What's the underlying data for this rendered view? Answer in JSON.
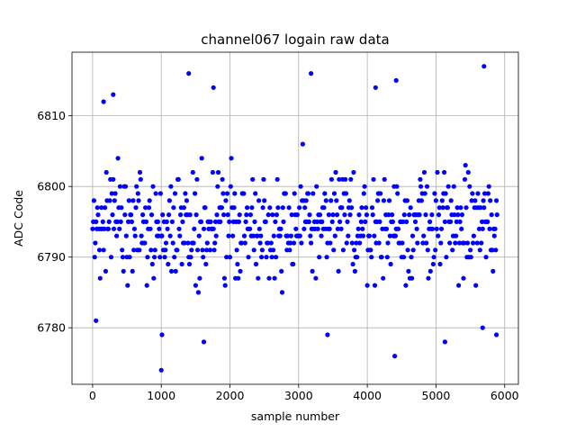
{
  "chart_data": {
    "type": "scatter",
    "title": "channel067 logain raw data",
    "xlabel": "sample number",
    "ylabel": "ADC Code",
    "xlim": [
      -300,
      6200
    ],
    "ylim": [
      6772,
      6819
    ],
    "xticks": [
      0,
      1000,
      2000,
      3000,
      4000,
      5000,
      6000
    ],
    "yticks": [
      6780,
      6790,
      6800,
      6810
    ],
    "grid": true,
    "marker_color": "#0000ff",
    "marker": "circle",
    "sample_count": 5900,
    "series": [
      {
        "x_start": 0,
        "x_step": 10,
        "y_range": [
          6774,
          6817
        ],
        "typical_range": [
          6785,
          6805
        ],
        "center": 6794.5,
        "notable_points": [
          {
            "x": 1000,
            "y": 6774
          },
          {
            "x": 1010,
            "y": 6779
          },
          {
            "x": 1400,
            "y": 6816
          },
          {
            "x": 1620,
            "y": 6778
          },
          {
            "x": 1760,
            "y": 6814
          },
          {
            "x": 3180,
            "y": 6816
          },
          {
            "x": 3420,
            "y": 6779
          },
          {
            "x": 4120,
            "y": 6814
          },
          {
            "x": 4400,
            "y": 6776
          },
          {
            "x": 4420,
            "y": 6815
          },
          {
            "x": 5130,
            "y": 6778
          },
          {
            "x": 5680,
            "y": 6780
          },
          {
            "x": 5700,
            "y": 6817
          },
          {
            "x": 5880,
            "y": 6779
          },
          {
            "x": 50,
            "y": 6781
          },
          {
            "x": 300,
            "y": 6813
          },
          {
            "x": 160,
            "y": 6812
          }
        ]
      }
    ]
  }
}
